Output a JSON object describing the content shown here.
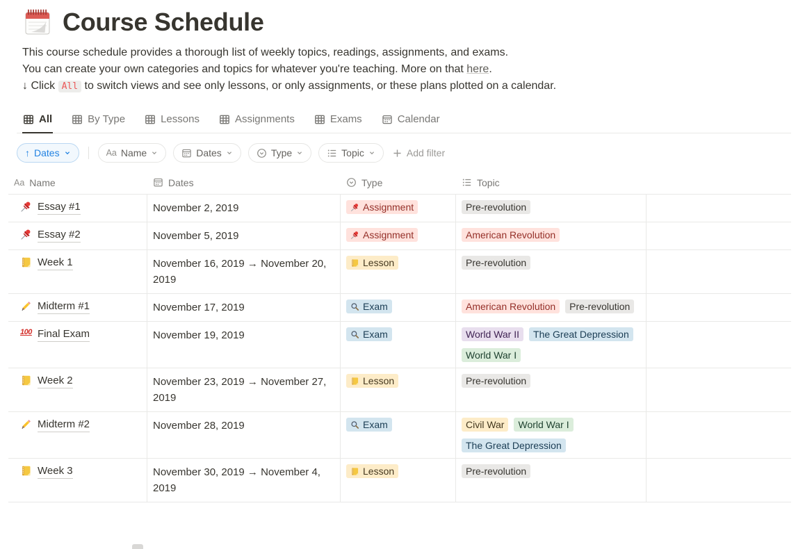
{
  "page": {
    "icon": "spiral-notepad-icon",
    "title": "Course Schedule",
    "description": {
      "line1": "This course schedule provides a thorough list of weekly topics, readings, assignments, and exams.",
      "line2_pre": "You can create your own categories and topics for whatever you're teaching. More on that ",
      "line2_link": "here",
      "line2_post": ".",
      "line3_pre": "↓ Click ",
      "line3_code": "All",
      "line3_post": " to switch views and see only lessons, or only assignments, or these plans plotted on a calendar."
    }
  },
  "tabs": [
    {
      "label": "All",
      "icon": "table-icon",
      "active": true
    },
    {
      "label": "By Type",
      "icon": "table-icon",
      "active": false
    },
    {
      "label": "Lessons",
      "icon": "table-icon",
      "active": false
    },
    {
      "label": "Assignments",
      "icon": "table-icon",
      "active": false
    },
    {
      "label": "Exams",
      "icon": "table-icon",
      "active": false
    },
    {
      "label": "Calendar",
      "icon": "calendar-icon",
      "active": false
    }
  ],
  "filter_bar": {
    "sort": {
      "direction": "↑",
      "label": "Dates"
    },
    "properties": [
      {
        "icon": "text-icon",
        "label": "Name"
      },
      {
        "icon": "calendar-icon",
        "label": "Dates"
      },
      {
        "icon": "select-icon",
        "label": "Type"
      },
      {
        "icon": "list-icon",
        "label": "Topic"
      }
    ],
    "add_filter_label": "Add filter"
  },
  "table": {
    "columns": [
      {
        "icon": "text-icon",
        "label": "Name"
      },
      {
        "icon": "calendar-icon",
        "label": "Dates"
      },
      {
        "icon": "select-icon",
        "label": "Type"
      },
      {
        "icon": "list-icon",
        "label": "Topic"
      }
    ],
    "rows": [
      {
        "icon": "pushpin-icon",
        "name": "Essay #1",
        "dates": "November 2, 2019",
        "type": {
          "label": "Assignment",
          "icon": "pushpin-icon",
          "color": "red"
        },
        "topics": [
          {
            "label": "Pre-revolution",
            "color": "gray"
          }
        ]
      },
      {
        "icon": "pushpin-icon",
        "name": "Essay #2",
        "dates": "November 5, 2019",
        "type": {
          "label": "Assignment",
          "icon": "pushpin-icon",
          "color": "red"
        },
        "topics": [
          {
            "label": "American Revolution",
            "color": "red"
          }
        ]
      },
      {
        "icon": "ledger-icon",
        "name": "Week 1",
        "dates": "November 16, 2019 → November 20, 2019",
        "type": {
          "label": "Lesson",
          "icon": "ledger-icon",
          "color": "yellow"
        },
        "topics": [
          {
            "label": "Pre-revolution",
            "color": "gray"
          }
        ]
      },
      {
        "icon": "pencil-icon",
        "name": "Midterm #1",
        "dates": "November 17, 2019",
        "type": {
          "label": "Exam",
          "icon": "magnifier-icon",
          "color": "blue"
        },
        "topics": [
          {
            "label": "American Revolution",
            "color": "red"
          },
          {
            "label": "Pre-revolution",
            "color": "gray"
          }
        ]
      },
      {
        "icon": "hundred-icon",
        "name": "Final Exam",
        "dates": "November 19, 2019",
        "type": {
          "label": "Exam",
          "icon": "magnifier-icon",
          "color": "blue"
        },
        "topics": [
          {
            "label": "World War II",
            "color": "purple"
          },
          {
            "label": "The Great Depression",
            "color": "blue"
          },
          {
            "label": "World War I",
            "color": "green"
          }
        ]
      },
      {
        "icon": "ledger-icon",
        "name": "Week 2",
        "dates": "November 23, 2019 → November 27, 2019",
        "type": {
          "label": "Lesson",
          "icon": "ledger-icon",
          "color": "yellow"
        },
        "topics": [
          {
            "label": "Pre-revolution",
            "color": "gray"
          }
        ]
      },
      {
        "icon": "pencil-icon",
        "name": "Midterm #2",
        "dates": "November 28, 2019",
        "type": {
          "label": "Exam",
          "icon": "magnifier-icon",
          "color": "blue"
        },
        "topics": [
          {
            "label": "Civil War",
            "color": "yellow"
          },
          {
            "label": "World War I",
            "color": "green"
          },
          {
            "label": "The Great Depression",
            "color": "blue"
          }
        ]
      },
      {
        "icon": "ledger-icon",
        "name": "Week 3",
        "dates": "November 30, 2019 → November 4, 2019",
        "type": {
          "label": "Lesson",
          "icon": "ledger-icon",
          "color": "yellow"
        },
        "topics": [
          {
            "label": "Pre-revolution",
            "color": "gray"
          }
        ]
      }
    ]
  },
  "colors": {
    "accent_blue": "#2383E2",
    "code_red": "#EB5757",
    "text": "#37352F",
    "muted_text": "#787774",
    "border": "#E9E9E7",
    "tag_palette": {
      "red": {
        "bg": "#FFE2DD",
        "text": "#942F28"
      },
      "yellow": {
        "bg": "#FDECC8",
        "text": "#44381F"
      },
      "blue": {
        "bg": "#D3E5EF",
        "text": "#1B3D54"
      },
      "purple": {
        "bg": "#E8DEEE",
        "text": "#412454"
      },
      "green": {
        "bg": "#DBEDDB",
        "text": "#1F4230"
      },
      "gray": {
        "bg": "#E9E8E6",
        "text": "#373530"
      }
    }
  }
}
